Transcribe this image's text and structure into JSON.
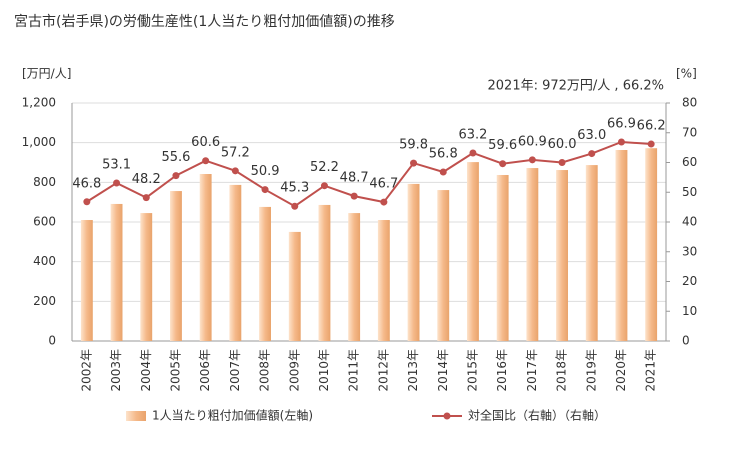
{
  "chart_data": {
    "type": "bar-line",
    "title": "宮古市(岩手県)の労働生産性(1人当たり粗付加価値額)の推移",
    "y_label": "[万円/人]",
    "y2_label": "[%]",
    "annotation": "2021年: 972万円/人 , 66.2%",
    "categories": [
      "2002年",
      "2003年",
      "2004年",
      "2005年",
      "2006年",
      "2007年",
      "2008年",
      "2009年",
      "2010年",
      "2011年",
      "2012年",
      "2013年",
      "2014年",
      "2015年",
      "2016年",
      "2017年",
      "2018年",
      "2019年",
      "2020年",
      "2021年"
    ],
    "series": [
      {
        "name": "1人当たり粗付加価値額(左軸)",
        "color": "#f2b07a",
        "type": "bar",
        "values": [
          610,
          691,
          645,
          756,
          842,
          787,
          676,
          550,
          686,
          645,
          610,
          792,
          761,
          902,
          837,
          872,
          862,
          887,
          963,
          972
        ]
      },
      {
        "name": "対全国比（右軸）（右軸）",
        "color": "#c0504d",
        "type": "line",
        "axis": "y2",
        "values": [
          46.8,
          53.1,
          48.2,
          55.6,
          60.6,
          57.2,
          50.9,
          45.3,
          52.2,
          48.7,
          46.7,
          59.8,
          56.8,
          63.2,
          59.6,
          60.9,
          60.0,
          63.0,
          66.9,
          66.2
        ],
        "value_labels": [
          "46.8",
          "53.1",
          "48.2",
          "55.6",
          "60.6",
          "57.2",
          "50.9",
          "45.3",
          "52.2",
          "48.7",
          "46.7",
          "59.8",
          "56.8",
          "63.2",
          "59.6",
          "60.9",
          "60.0",
          "63.0",
          "66.9",
          "66.2"
        ]
      }
    ],
    "ylim": [
      0,
      1200
    ],
    "yticks": [
      0,
      200,
      400,
      600,
      800,
      {
        "value": 1000,
        "label": "1,000"
      },
      {
        "value": 1200,
        "label": "1,200"
      }
    ],
    "y2lim": [
      0,
      80
    ],
    "y2ticks": [
      0,
      10,
      20,
      30,
      40,
      50,
      60,
      70,
      80
    ],
    "grid": true
  }
}
